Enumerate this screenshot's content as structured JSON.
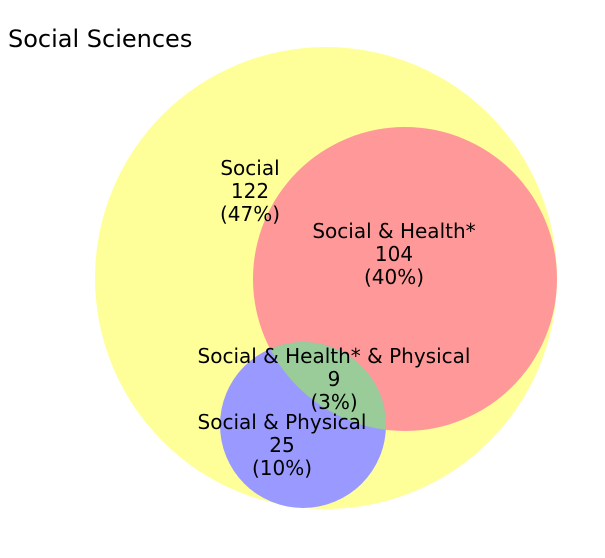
{
  "title": "Social Sciences",
  "colors": {
    "social": "#ffff99",
    "health": "#ff9999",
    "physical": "#9999ff",
    "overlap": "#99cc99"
  },
  "regions": {
    "social": {
      "name": "Social",
      "count": "122",
      "percent": "(47%)"
    },
    "social_health": {
      "name": "Social & Health*",
      "count": "104",
      "percent": "(40%)"
    },
    "social_health_physical": {
      "name": "Social & Health* & Physical",
      "count": "9",
      "percent": "(3%)"
    },
    "social_physical": {
      "name": "Social & Physical",
      "count": "25",
      "percent": "(10%)"
    }
  }
}
